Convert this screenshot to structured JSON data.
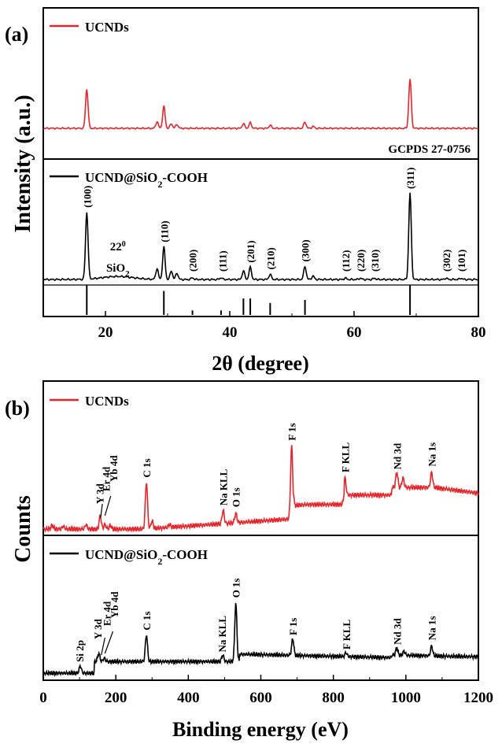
{
  "chart_data": [
    {
      "panel": "(a)",
      "type": "line",
      "xlabel": "2θ (degree)",
      "ylabel": "Intensity (a.u.)",
      "xlim": [
        10,
        80
      ],
      "xticks": [
        "20",
        "40",
        "60",
        "80"
      ],
      "series": [
        {
          "name": "UCNDs",
          "color": "#e8242b",
          "peaks": [
            [
              17.0,
              1.0
            ],
            [
              28.3,
              0.17
            ],
            [
              29.4,
              0.56
            ],
            [
              30.6,
              0.12
            ],
            [
              31.5,
              0.1
            ],
            [
              42.2,
              0.12
            ],
            [
              43.3,
              0.14
            ],
            [
              46.5,
              0.08
            ],
            [
              52.1,
              0.16
            ],
            [
              53.4,
              0.05
            ],
            [
              69.0,
              1.25
            ]
          ]
        },
        {
          "name": "UCND@SiO2-COOH",
          "color": "#000000",
          "peaks": [
            [
              17.0,
              1.55
            ],
            [
              28.3,
              0.25
            ],
            [
              29.4,
              0.75
            ],
            [
              30.6,
              0.2
            ],
            [
              31.5,
              0.15
            ],
            [
              34.0,
              0.04
            ],
            [
              38.6,
              0.04
            ],
            [
              42.2,
              0.2
            ],
            [
              43.3,
              0.28
            ],
            [
              46.5,
              0.12
            ],
            [
              52.1,
              0.3
            ],
            [
              53.4,
              0.08
            ],
            [
              58.6,
              0.03
            ],
            [
              61.0,
              0.03
            ],
            [
              63.3,
              0.03
            ],
            [
              69.0,
              2.0
            ],
            [
              74.8,
              0.03
            ],
            [
              77.2,
              0.03
            ]
          ],
          "hump": {
            "center": 22,
            "height": 0.07
          }
        }
      ],
      "reference": {
        "label": "GCPDS 27-0756",
        "lines": [
          [
            17.0,
            1.0
          ],
          [
            29.4,
            0.8
          ],
          [
            34.0,
            0.15
          ],
          [
            38.6,
            0.15
          ],
          [
            42.2,
            0.55
          ],
          [
            43.3,
            0.55
          ],
          [
            46.5,
            0.4
          ],
          [
            52.1,
            0.5
          ],
          [
            69.0,
            1.0
          ]
        ]
      },
      "peak_labels": [
        {
          "x": 17.0,
          "text": "(100)"
        },
        {
          "x": 29.4,
          "text": "(110)"
        },
        {
          "x": 34.0,
          "text": "(200)"
        },
        {
          "x": 38.8,
          "text": "(111)"
        },
        {
          "x": 43.3,
          "text": "(201)"
        },
        {
          "x": 46.5,
          "text": "(210)"
        },
        {
          "x": 52.1,
          "text": "(300)"
        },
        {
          "x": 58.6,
          "text": "(112)"
        },
        {
          "x": 61.0,
          "text": "(220)"
        },
        {
          "x": 63.3,
          "text": "(310)"
        },
        {
          "x": 69.0,
          "text": "(311)"
        },
        {
          "x": 74.8,
          "text": "(302)"
        },
        {
          "x": 77.2,
          "text": "(101)"
        }
      ],
      "annotation": {
        "x": 22,
        "line1": "22",
        "line1_sup": "0",
        "line2": "SiO",
        "line2_sub": "2"
      }
    },
    {
      "panel": "(b)",
      "type": "line",
      "xlabel": "Binding energy (eV)",
      "ylabel": "Counts",
      "xlim": [
        0,
        1200
      ],
      "xticks": [
        "0",
        "200",
        "400",
        "600",
        "800",
        "1000",
        "1200"
      ],
      "series": [
        {
          "name": "UCNDs",
          "color": "#e8242b",
          "peaks": [
            [
              25,
              0.1
            ],
            [
              55,
              0.08
            ],
            [
              118,
              0.12
            ],
            [
              157,
              0.35
            ],
            [
              170,
              0.12
            ],
            [
              185,
              0.1
            ],
            [
              284.5,
              1.25
            ],
            [
              300,
              0.2
            ],
            [
              348,
              0.08
            ],
            [
              496,
              0.35
            ],
            [
              531,
              0.25
            ],
            [
              685,
              1.95
            ],
            [
              832,
              0.45
            ],
            [
              975,
              0.4
            ],
            [
              992,
              0.25
            ],
            [
              1071,
              0.4
            ]
          ],
          "labels": [
            {
              "x": 155,
              "text": "Y 3d"
            },
            {
              "x": 173,
              "text": "Er 4d"
            },
            {
              "x": 193,
              "text": "Yb 4d"
            },
            {
              "x": 284.5,
              "text": "C 1s"
            },
            {
              "x": 496,
              "text": "Na KLL"
            },
            {
              "x": 531,
              "text": "O 1s"
            },
            {
              "x": 685,
              "text": "F 1s"
            },
            {
              "x": 832,
              "text": "F KLL"
            },
            {
              "x": 975,
              "text": "Nd 3d"
            },
            {
              "x": 1071,
              "text": "Na 1s"
            }
          ]
        },
        {
          "name": "UCND@SiO2-COOH",
          "color": "#000000",
          "peaks": [
            [
              102,
              0.22
            ],
            [
              153,
              0.25
            ],
            [
              168,
              0.1
            ],
            [
              284.5,
              0.82
            ],
            [
              495,
              0.2
            ],
            [
              531,
              1.75
            ],
            [
              688,
              0.5
            ],
            [
              835,
              0.12
            ],
            [
              975,
              0.22
            ],
            [
              995,
              0.12
            ],
            [
              1071,
              0.3
            ]
          ],
          "labels": [
            {
              "x": 100,
              "text": "Si 2p"
            },
            {
              "x": 150,
              "text": "Y 3d"
            },
            {
              "x": 175,
              "text": "Er 4d"
            },
            {
              "x": 195,
              "text": "Yb 4d"
            },
            {
              "x": 284.5,
              "text": "C 1s"
            },
            {
              "x": 493,
              "text": "Na KLL"
            },
            {
              "x": 531,
              "text": "O 1s"
            },
            {
              "x": 688,
              "text": "F 1s"
            },
            {
              "x": 835,
              "text": "F KLL"
            },
            {
              "x": 975,
              "text": "Nd 3d"
            },
            {
              "x": 1071,
              "text": "Na 1s"
            }
          ]
        }
      ]
    }
  ]
}
